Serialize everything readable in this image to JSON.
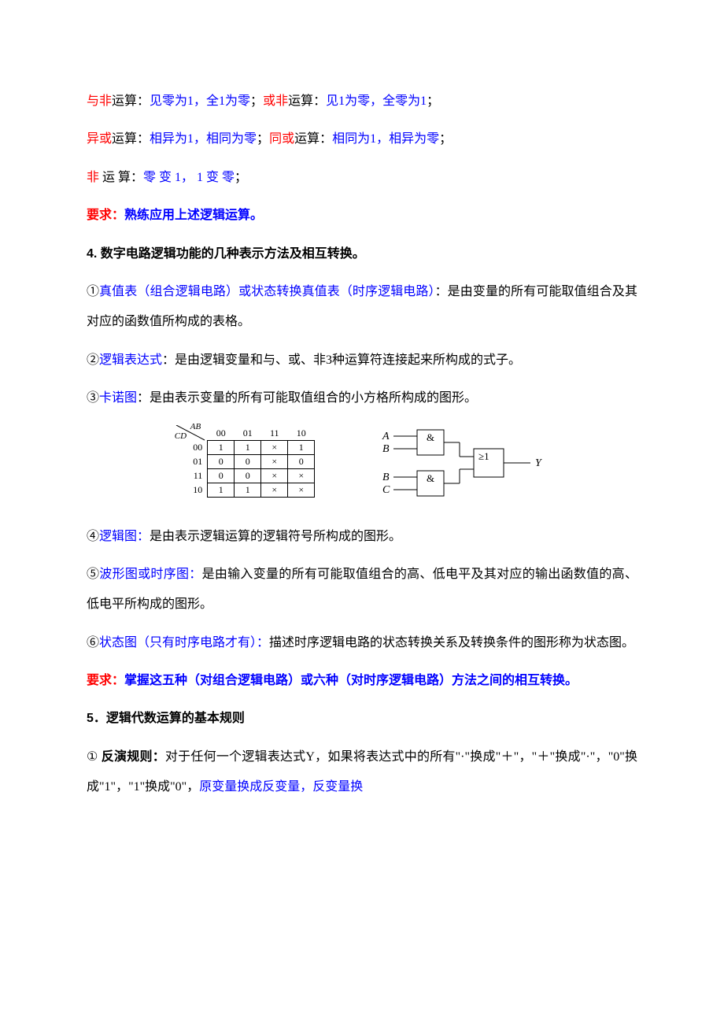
{
  "colors": {
    "red": "#ff0000",
    "blue": "#0000ff",
    "black": "#000000",
    "bg": "#ffffff"
  },
  "p1": {
    "a": "与非",
    "b": "运算：",
    "c": "见零为1，全1为零",
    "d": "；",
    "e": "或非",
    "f": "运算：",
    "g": "见1为零，全零为1",
    "h": "；"
  },
  "p2": {
    "a": "异或",
    "b": "运算：",
    "c": "相异为1，相同为零",
    "d": "；",
    "e": "同或",
    "f": "运算：",
    "g": "相同为1，相异为零",
    "h": "；"
  },
  "p3": {
    "a": "非",
    "b": " 运 算：",
    "c": "零 变 1， 1 变 零",
    "d": "；"
  },
  "p4": {
    "a": "要求：",
    "b": "熟练应用上述逻辑运算。"
  },
  "h4": "4. 数字电路逻辑功能的几种表示方法及相互转换。",
  "p5": {
    "a": "①",
    "b": "真值表（组合逻辑电路）或状态转换真值表（时序逻辑电路）",
    "c": "：是由变量的所有可能取值组合及其对应的函数值所构成的表格。"
  },
  "p6": {
    "a": "②",
    "b": "逻辑表达式",
    "c": "：是由逻辑变量和与、或、非3种运算符连接起来所构成的式子。"
  },
  "p7": {
    "a": "③",
    "b": "卡诺图",
    "c": "：是由表示变量的所有可能取值组合的小方格所构成的图形。"
  },
  "kmap": {
    "col_var": "AB",
    "row_var": "CD",
    "col_headers": [
      "00",
      "01",
      "11",
      "10"
    ],
    "row_headers": [
      "00",
      "01",
      "11",
      "10"
    ],
    "cells": [
      [
        "1",
        "1",
        "×",
        "1"
      ],
      [
        "0",
        "0",
        "×",
        "0"
      ],
      [
        "0",
        "0",
        "×",
        "×"
      ],
      [
        "1",
        "1",
        "×",
        "×"
      ]
    ]
  },
  "logic": {
    "inputs_top": [
      "A",
      "B"
    ],
    "inputs_bottom": [
      "B",
      "C"
    ],
    "gate_and": "&",
    "gate_or": "≥1",
    "output": "Y"
  },
  "p8": {
    "a": "④",
    "b": "逻辑图：",
    "c": "是由表示逻辑运算的逻辑符号所构成的图形。"
  },
  "p9": {
    "a": "⑤",
    "b": "波形图或时序图：",
    "c": "是由输入变量的所有可能取值组合的高、低电平及其对应的输出函数值的高、低电平所构成的图形。"
  },
  "p10": {
    "a": "⑥",
    "b": "状态图（只有时序电路才有）：",
    "c": "描述时序逻辑电路的状态转换关系及转换条件的图形称为状态图。"
  },
  "p11": {
    "a": "要求：",
    "b": "掌握这五种（对组合逻辑电路）或六种（对时序逻辑电路）方法之间的相互转换。"
  },
  "h5": "5．逻辑代数运算的基本规则",
  "p12": {
    "a": "① ",
    "b": "反演规则：",
    "c": "对于任何一个逻辑表达式Y，如果将表达式中的所有\"·\"换成\"＋\"，\"＋\"换成\"·\"，\"0\"换成\"1\"，\"1\"换成\"0\"，",
    "d": "原变量换成反变量，反变量换"
  }
}
